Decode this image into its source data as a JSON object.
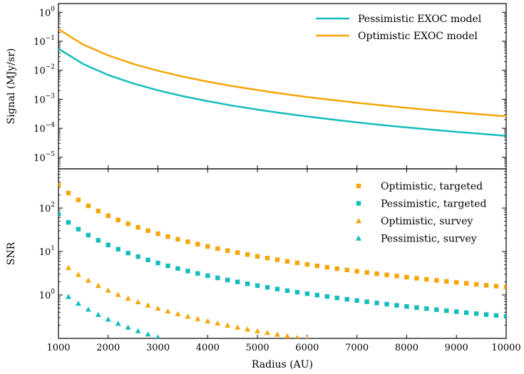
{
  "chart_data": [
    {
      "type": "line",
      "panel": "top",
      "title": "",
      "xlabel": "",
      "ylabel": "Signal (MJy/sr)",
      "xlim": [
        1000,
        10000
      ],
      "ylim": [
        4e-06,
        2
      ],
      "yscale": "log",
      "grid": false,
      "legend_position": "top-right",
      "yticks": [
        {
          "value": 1,
          "label": "10",
          "exp": "0"
        },
        {
          "value": 0.1,
          "label": "10",
          "exp": "−1"
        },
        {
          "value": 0.01,
          "label": "10",
          "exp": "−2"
        },
        {
          "value": 0.001,
          "label": "10",
          "exp": "−3"
        },
        {
          "value": 0.0001,
          "label": "10",
          "exp": "−4"
        },
        {
          "value": 1e-05,
          "label": "10",
          "exp": "−5"
        }
      ],
      "x": [
        1000,
        1500,
        2000,
        2500,
        3000,
        3500,
        4000,
        4500,
        5000,
        5500,
        6000,
        6500,
        7000,
        7500,
        8000,
        8500,
        9000,
        9500,
        10000
      ],
      "series": [
        {
          "name": "Pessimistic EXOC model",
          "color": "#17bcbc",
          "values": [
            0.055,
            0.0163,
            0.00688,
            0.00352,
            0.00204,
            0.00128,
            0.00086,
            0.000604,
            0.00044,
            0.000331,
            0.000255,
            0.0002,
            0.00016,
            0.00013,
            0.000107,
            8.96e-05,
            7.55e-05,
            6.42e-05,
            5.5e-05
          ]
        },
        {
          "name": "Optimistic EXOC model",
          "color": "#f5a60a",
          "values": [
            0.26,
            0.077,
            0.0325,
            0.0166,
            0.00963,
            0.00606,
            0.00406,
            0.00285,
            0.00208,
            0.00156,
            0.0012,
            0.000947,
            0.000758,
            0.000616,
            0.000508,
            0.000423,
            0.000357,
            0.000303,
            0.00026
          ]
        }
      ]
    },
    {
      "type": "scatter",
      "panel": "bottom",
      "title": "",
      "xlabel": "Radius (AU)",
      "ylabel": "SNR",
      "xlim": [
        1000,
        10000
      ],
      "ylim": [
        0.1,
        800
      ],
      "yscale": "log",
      "grid": false,
      "legend_position": "top-right",
      "xticks": [
        1000,
        2000,
        3000,
        4000,
        5000,
        6000,
        7000,
        8000,
        9000,
        10000
      ],
      "yticks": [
        {
          "value": 100,
          "label": "10",
          "exp": "2"
        },
        {
          "value": 10,
          "label": "10",
          "exp": "1"
        },
        {
          "value": 1,
          "label": "10",
          "exp": "0"
        }
      ],
      "series": [
        {
          "name": "Optimistic, targeted",
          "color": "#f5a60a",
          "marker": "square",
          "a": 340,
          "k": 2.35,
          "x_start": 1000,
          "x_end": 10000,
          "step": 200
        },
        {
          "name": "Pessimistic, targeted",
          "color": "#17bcbc",
          "marker": "square",
          "a": 72,
          "k": 2.35,
          "x_start": 1000,
          "x_end": 10000,
          "step": 200
        },
        {
          "name": "Optimistic, survey",
          "color": "#f5a60a",
          "marker": "triangle",
          "a": 6.5,
          "k": 2.35,
          "x_start": 1200,
          "x_end": 6400,
          "step": 200
        },
        {
          "name": "Pessimistic, survey",
          "color": "#17bcbc",
          "marker": "triangle",
          "a": 1.4,
          "k": 2.35,
          "x_start": 1200,
          "x_end": 3400,
          "step": 200
        }
      ]
    }
  ]
}
